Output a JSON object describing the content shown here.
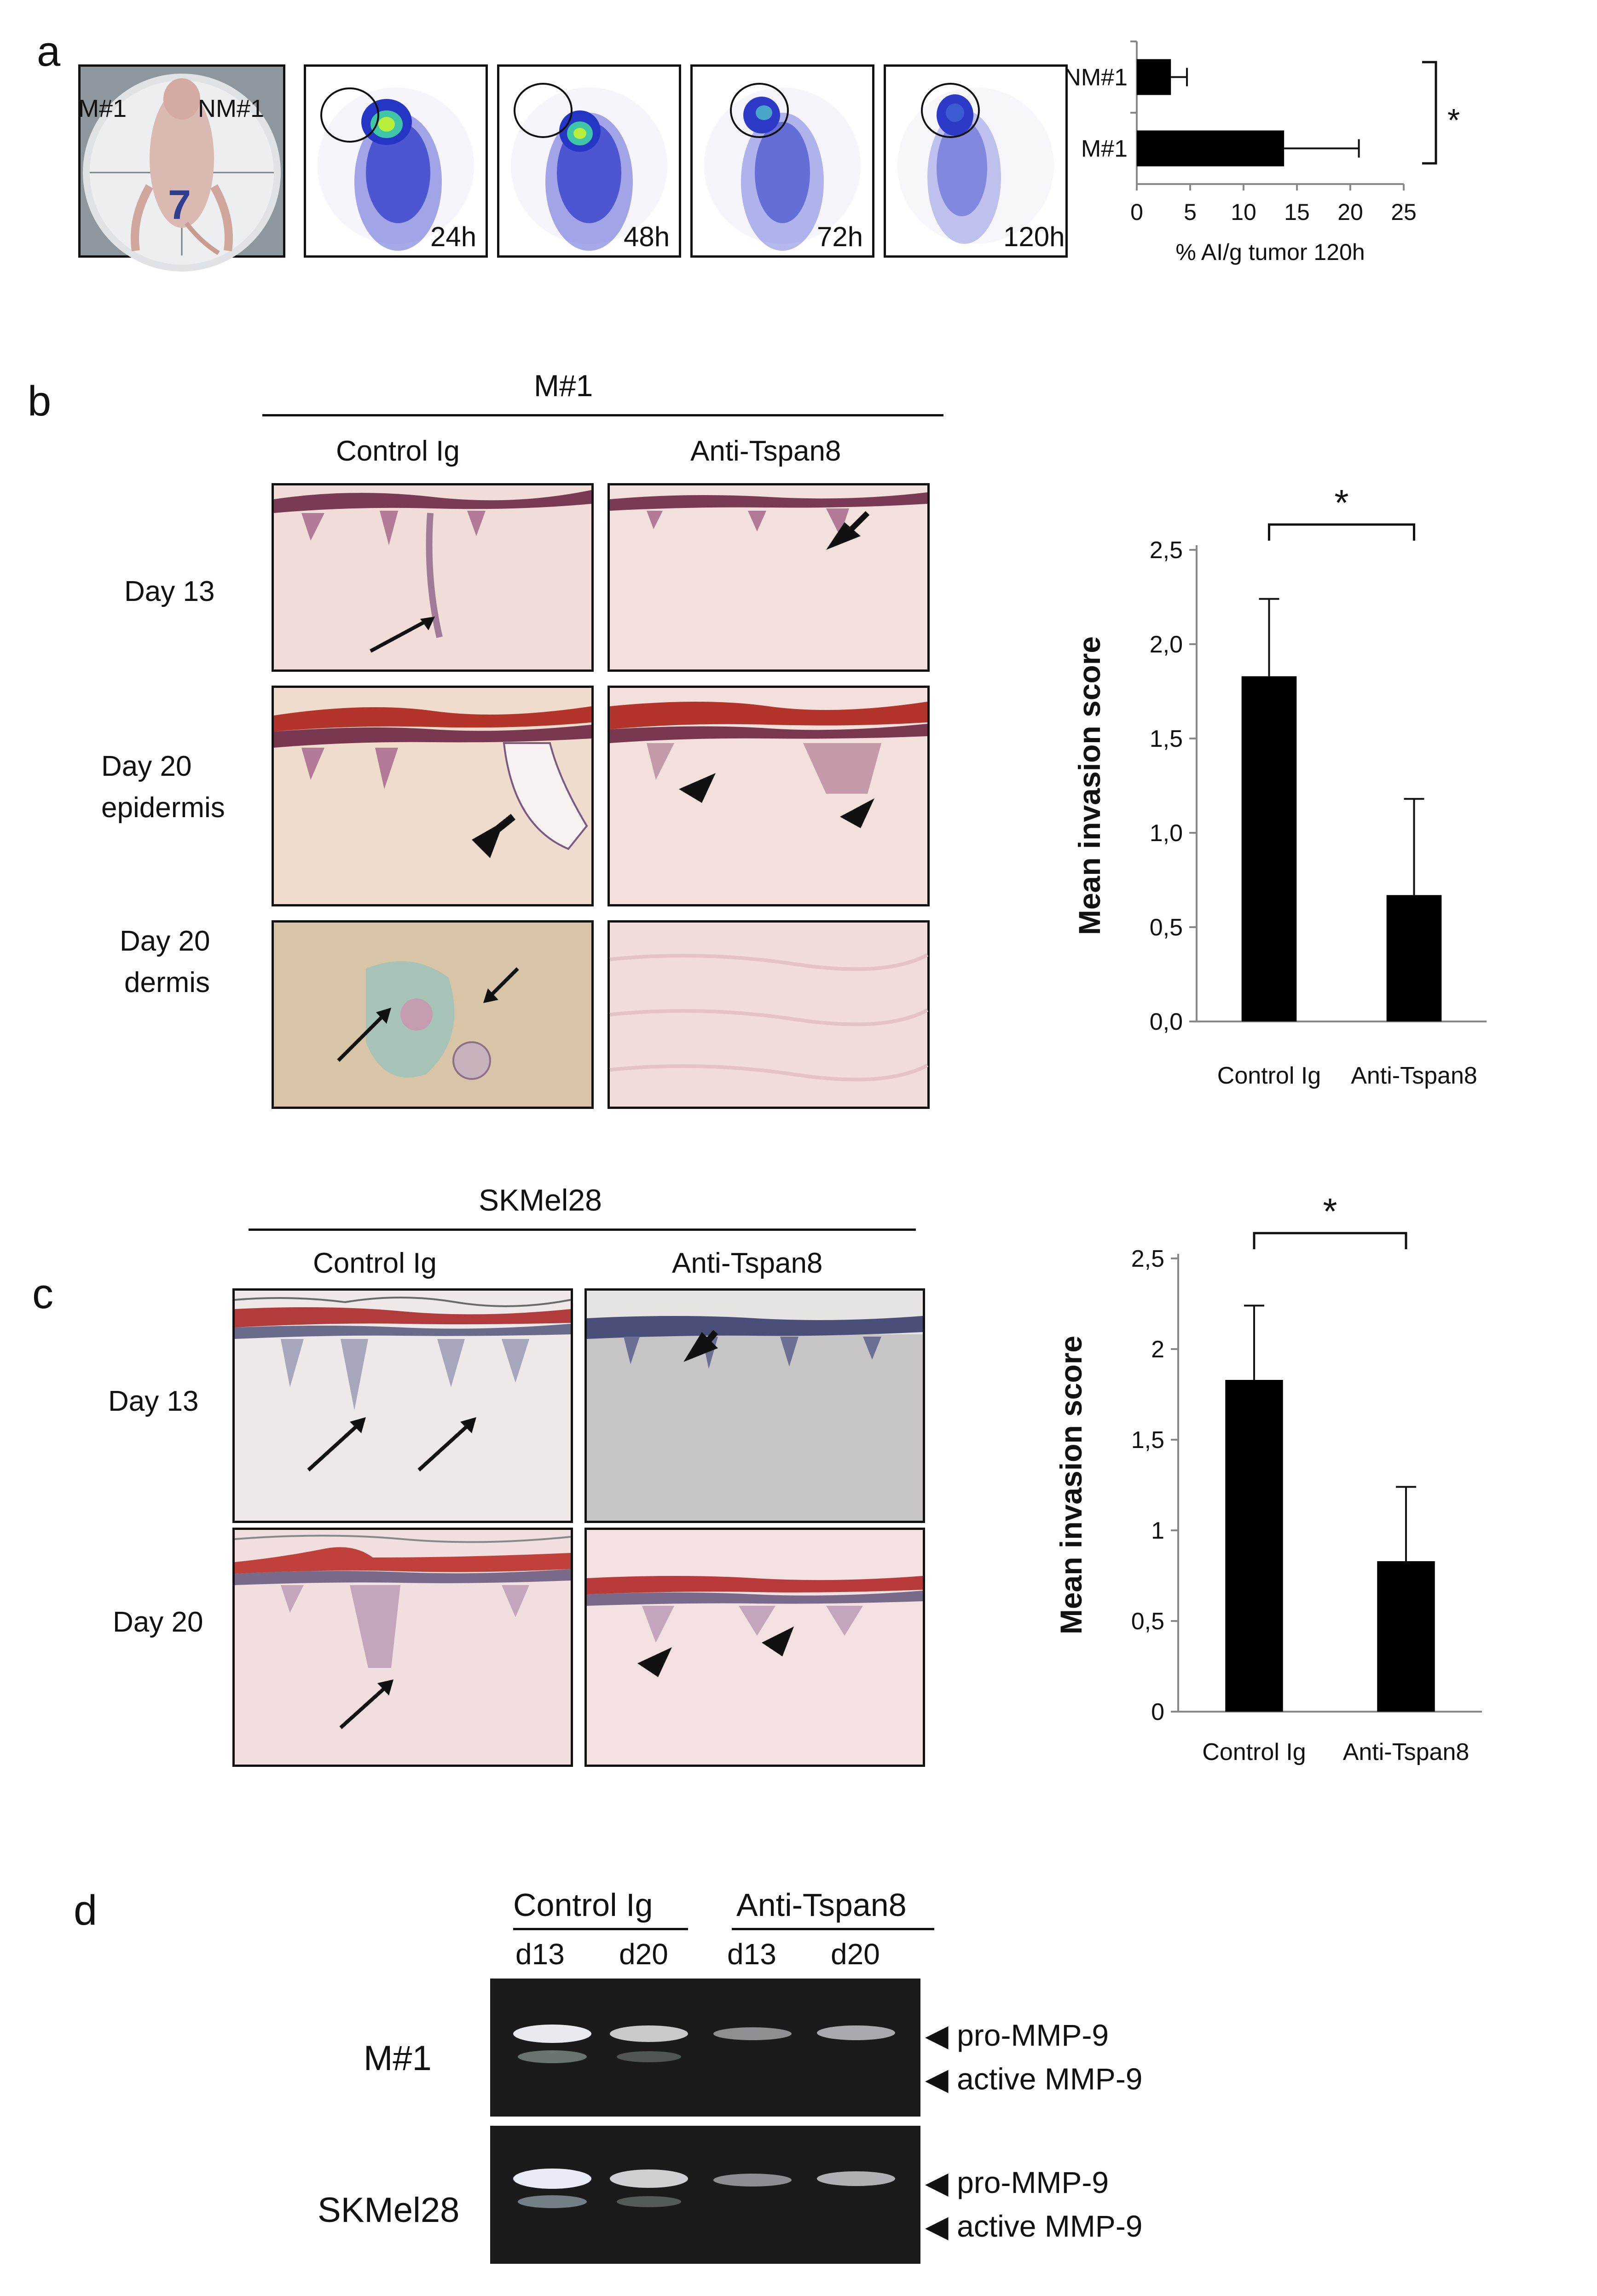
{
  "panels": {
    "a": {
      "label": "a",
      "photo_labels": {
        "left": "M#1",
        "right": "NM#1",
        "cage_number": "7"
      },
      "timepoints": [
        "24h",
        "48h",
        "72h",
        "120h"
      ]
    },
    "b": {
      "label": "b",
      "group_title": "M#1",
      "col_labels": [
        "Control Ig",
        "Anti-Tspan8"
      ],
      "row_labels": [
        [
          "Day 13"
        ],
        [
          "Day 20",
          "epidermis"
        ],
        [
          "Day 20",
          "dermis"
        ]
      ]
    },
    "c": {
      "label": "c",
      "group_title": "SKMel28",
      "col_labels": [
        "Control Ig",
        "Anti-Tspan8"
      ],
      "row_labels": [
        [
          "Day 13"
        ],
        [
          "Day 20"
        ]
      ]
    },
    "d": {
      "label": "d",
      "group_labels": [
        "Control Ig",
        "Anti-Tspan8"
      ],
      "lane_labels": [
        "d13",
        "d20",
        "d13",
        "d20"
      ],
      "row_labels": [
        "M#1",
        "SKMel28"
      ],
      "band_labels": [
        "pro-MMP-9",
        "active MMP-9"
      ]
    }
  },
  "colors": {
    "bar": "#000000",
    "axis": "#888888",
    "text": "#111111",
    "gel_bg": "#1a1a1a"
  },
  "chart_data": [
    {
      "id": "chart-a",
      "type": "bar",
      "orientation": "horizontal",
      "categories": [
        "NM#1",
        "M#1"
      ],
      "values": [
        3.2,
        13.8
      ],
      "errors": [
        1.5,
        7.0
      ],
      "xlabel": "% AI/g tumor 120h",
      "xlim": [
        0,
        25
      ],
      "ticks": [
        "0",
        "5",
        "10",
        "15",
        "20",
        "25"
      ],
      "tick_values": [
        0,
        5,
        10,
        15,
        20,
        25
      ],
      "significance": "*"
    },
    {
      "id": "chart-b",
      "type": "bar",
      "categories": [
        "Control Ig",
        "Anti-Tspan8"
      ],
      "values": [
        1.83,
        0.67
      ],
      "errors": [
        0.41,
        0.51
      ],
      "ylabel": "Mean invasion score",
      "ylim": [
        0,
        2.5
      ],
      "ticks": [
        "0,0",
        "0,5",
        "1,0",
        "1,5",
        "2,0",
        "2,5"
      ],
      "tick_values": [
        0,
        0.5,
        1.0,
        1.5,
        2.0,
        2.5
      ],
      "significance": "*"
    },
    {
      "id": "chart-c",
      "type": "bar",
      "categories": [
        "Control Ig",
        "Anti-Tspan8"
      ],
      "values": [
        1.83,
        0.83
      ],
      "errors": [
        0.41,
        0.41
      ],
      "ylabel": "Mean invasion score",
      "ylim": [
        0,
        2.5
      ],
      "ticks": [
        "0",
        "0,5",
        "1",
        "1,5",
        "2",
        "2,5"
      ],
      "tick_values": [
        0,
        0.5,
        1,
        1.5,
        2,
        2.5
      ],
      "significance": "*"
    }
  ]
}
